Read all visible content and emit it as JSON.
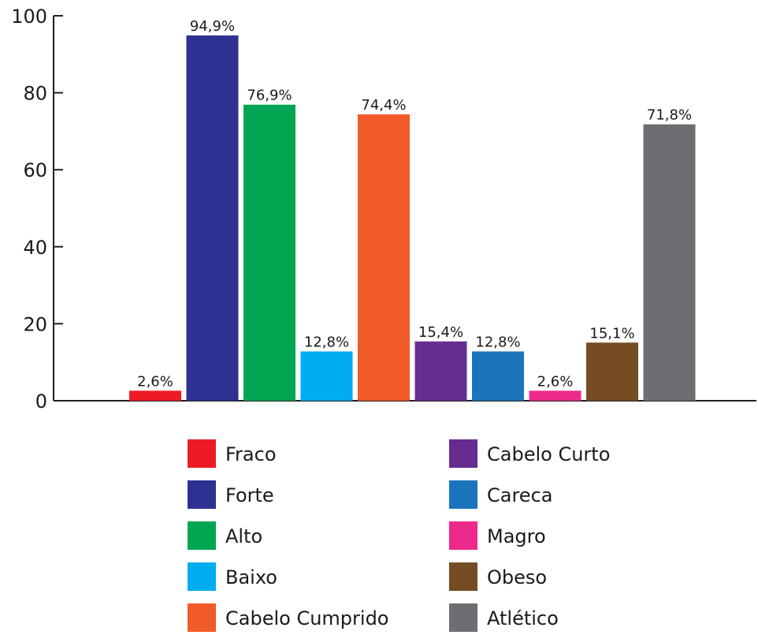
{
  "chart_data": {
    "type": "bar",
    "title": "",
    "xlabel": "",
    "ylabel": "",
    "ylim": [
      0,
      100
    ],
    "yticks": [
      "0",
      "20",
      "40",
      "60",
      "80",
      "100"
    ],
    "categories": [
      "Fraco",
      "Forte",
      "Alto",
      "Baixo",
      "Cabelo Cumprido",
      "Cabelo Curto",
      "Careca",
      "Magro",
      "Obeso",
      "Atlético"
    ],
    "values": [
      2.6,
      94.9,
      76.9,
      12.8,
      74.4,
      15.4,
      12.8,
      2.6,
      15.1,
      71.8
    ],
    "data_labels": [
      "2,6%",
      "94,9%",
      "76,9%",
      "12,8%",
      "74,4%",
      "15,4%",
      "12,8%",
      "2,6%",
      "15,1%",
      "71,8%"
    ],
    "colors": [
      "#ed1c24",
      "#2e3192",
      "#00a651",
      "#00aeef",
      "#f15a29",
      "#662d91",
      "#1b75bc",
      "#ec2a8b",
      "#754c24",
      "#6d6e71"
    ],
    "legend": {
      "placement": "bottom",
      "columns": [
        [
          "Fraco",
          "Forte",
          "Alto",
          "Baixo",
          "Cabelo Cumprido"
        ],
        [
          "Cabelo Curto",
          "Careca",
          "Magro",
          "Obeso",
          "Atlético"
        ]
      ]
    },
    "grid": false
  }
}
